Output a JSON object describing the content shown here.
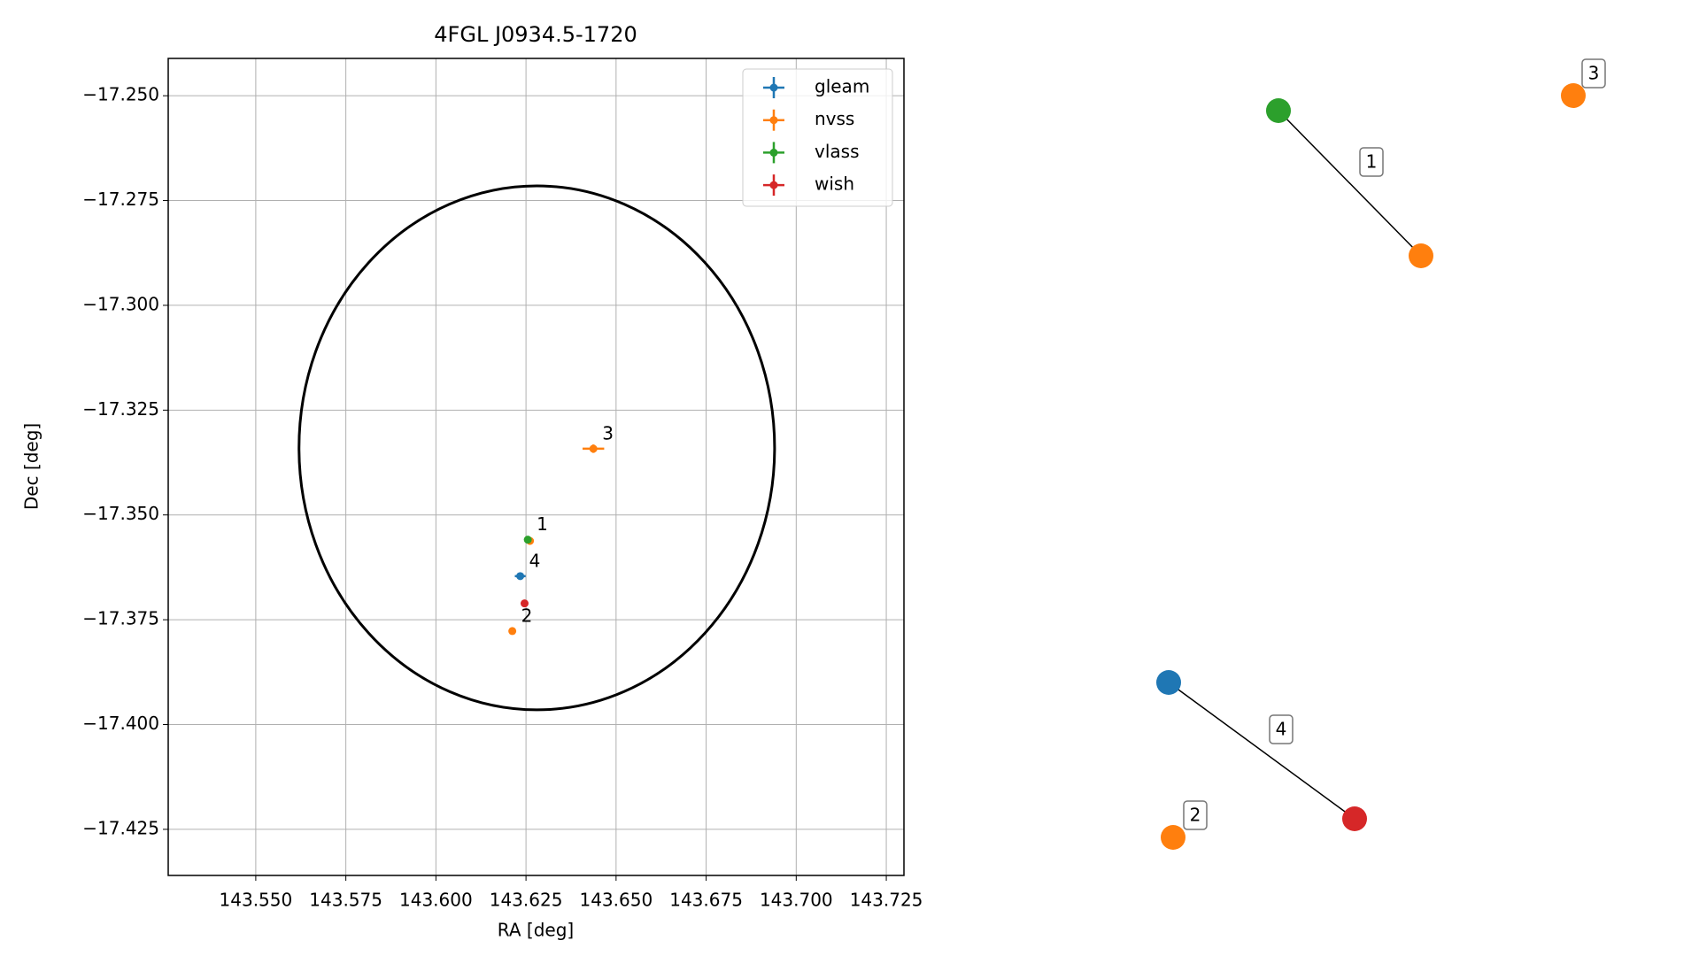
{
  "chart_data": {
    "type": "scatter",
    "title": "4FGL J0934.5-1720",
    "x_label": "RA [deg]",
    "y_label": "Dec [deg]",
    "xlim": [
      143.5257,
      143.7299
    ],
    "ylim": [
      -17.436,
      -17.2411
    ],
    "grid": true,
    "legend": "upper right",
    "xticks": [
      {
        "value": 143.55,
        "label": "143.550"
      },
      {
        "value": 143.575,
        "label": "143.575"
      },
      {
        "value": 143.6,
        "label": "143.600"
      },
      {
        "value": 143.625,
        "label": "143.625"
      },
      {
        "value": 143.65,
        "label": "143.650"
      },
      {
        "value": 143.675,
        "label": "143.675"
      },
      {
        "value": 143.7,
        "label": "143.700"
      },
      {
        "value": 143.725,
        "label": "143.725"
      }
    ],
    "yticks": [
      {
        "value": -17.25,
        "label": "−17.250"
      },
      {
        "value": -17.275,
        "label": "−17.275"
      },
      {
        "value": -17.3,
        "label": "−17.300"
      },
      {
        "value": -17.325,
        "label": "−17.325"
      },
      {
        "value": -17.35,
        "label": "−17.350"
      },
      {
        "value": -17.375,
        "label": "−17.375"
      },
      {
        "value": -17.4,
        "label": "−17.400"
      },
      {
        "value": -17.425,
        "label": "−17.425"
      }
    ],
    "region": {
      "ra": 143.628,
      "dec": -17.334,
      "radius_ra": 0.066,
      "radius_dec": 0.0625,
      "color": "#000000"
    },
    "series": [
      {
        "name": "gleam",
        "color": "#1f77b4",
        "x": [
          143.6234
        ],
        "values": [
          -17.3646
        ],
        "xerr": [
          0.0015
        ],
        "yerr": [
          0.0005
        ]
      },
      {
        "name": "nvss",
        "color": "#ff7f0e",
        "x": [
          143.6261,
          143.6212,
          143.6437
        ],
        "values": [
          -17.3562,
          -17.3777,
          -17.3342
        ],
        "xerr": [
          0.0005,
          0.0005,
          0.003
        ],
        "yerr": [
          0.0005,
          0.0005,
          0.001
        ]
      },
      {
        "name": "vlass",
        "color": "#2ca02c",
        "x": [
          143.6255
        ],
        "values": [
          -17.3559
        ],
        "xerr": [
          0.0003
        ],
        "yerr": [
          0.0003
        ]
      },
      {
        "name": "wish",
        "color": "#d62728",
        "x": [
          143.6246
        ],
        "values": [
          -17.3711
        ],
        "xerr": [
          0.0004
        ],
        "yerr": [
          0.0004
        ]
      }
    ],
    "annotations": [
      {
        "text": "1",
        "x": 143.6255,
        "y": -17.3559
      },
      {
        "text": "2",
        "x": 143.6212,
        "y": -17.3777
      },
      {
        "text": "3",
        "x": 143.6437,
        "y": -17.3342
      },
      {
        "text": "4",
        "x": 143.6234,
        "y": -17.3646
      }
    ]
  },
  "diagram": {
    "groups": [
      {
        "label": "1",
        "nodes": [
          "vlass",
          "nvss"
        ]
      },
      {
        "label": "3",
        "nodes": [
          "nvss"
        ]
      },
      {
        "label": "4",
        "nodes": [
          "gleam",
          "wish"
        ]
      },
      {
        "label": "2",
        "nodes": [
          "nvss"
        ]
      }
    ]
  }
}
